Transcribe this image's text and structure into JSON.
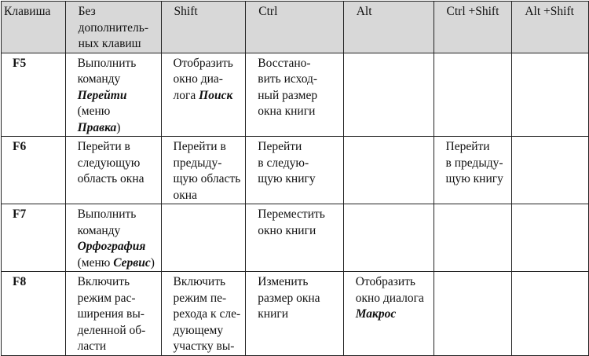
{
  "headers": [
    [
      [
        "Клавиша"
      ]
    ],
    [
      [
        "Без"
      ],
      [
        "дополнитель-"
      ],
      [
        "ных клавиш"
      ]
    ],
    [
      [
        "Shift"
      ]
    ],
    [
      [
        "Ctrl"
      ]
    ],
    [
      [
        "Alt"
      ]
    ],
    [
      [
        "Ctrl +Shift"
      ]
    ],
    [
      [
        "Alt +Shift"
      ]
    ]
  ],
  "rows": [
    {
      "key": "F5",
      "cells": [
        [
          [
            "Выполнить"
          ],
          [
            "команду"
          ],
          [
            "*Перейти"
          ],
          [
            "(меню"
          ],
          [
            "*Правка",
            ")"
          ]
        ],
        [
          [
            "Отобразить"
          ],
          [
            "окно диа-"
          ],
          [
            "лога ",
            "*Поиск"
          ]
        ],
        [
          [
            "Восстано-"
          ],
          [
            "вить исход-"
          ],
          [
            "ный размер"
          ],
          [
            "окна книги"
          ]
        ],
        [],
        [],
        []
      ]
    },
    {
      "key": "F6",
      "cells": [
        [
          [
            "Перейти в"
          ],
          [
            "следующую"
          ],
          [
            "область окна"
          ]
        ],
        [
          [
            "Перейти в"
          ],
          [
            "предыду-"
          ],
          [
            "щую область"
          ],
          [
            "окна"
          ]
        ],
        [
          [
            "Перейти"
          ],
          [
            "в следую-"
          ],
          [
            "щую книгу"
          ]
        ],
        [],
        [
          [
            "Перейти"
          ],
          [
            "в предыду-"
          ],
          [
            "щую книгу"
          ]
        ],
        []
      ]
    },
    {
      "key": "F7",
      "cells": [
        [
          [
            "Выполнить"
          ],
          [
            "команду"
          ],
          [
            "*Орфография"
          ],
          [
            "(меню ",
            "*Сервис",
            ")"
          ]
        ],
        [],
        [
          [
            "Переместить"
          ],
          [
            "окно книги"
          ]
        ],
        [],
        [],
        []
      ]
    },
    {
      "key": "F8",
      "cells": [
        [
          [
            "Включить"
          ],
          [
            "режим рас-"
          ],
          [
            "ширения вы-"
          ],
          [
            "деленной об-"
          ],
          [
            "ласти"
          ]
        ],
        [
          [
            "Включить"
          ],
          [
            "режим пе-"
          ],
          [
            "рехода к сле-"
          ],
          [
            "дующему"
          ],
          [
            "участку вы-"
          ]
        ],
        [
          [
            "Изменить"
          ],
          [
            "размер окна"
          ],
          [
            "книги"
          ]
        ],
        [
          [
            "Отобразить"
          ],
          [
            "окно диалога"
          ],
          [
            "*Макрос"
          ]
        ],
        [],
        []
      ]
    }
  ]
}
